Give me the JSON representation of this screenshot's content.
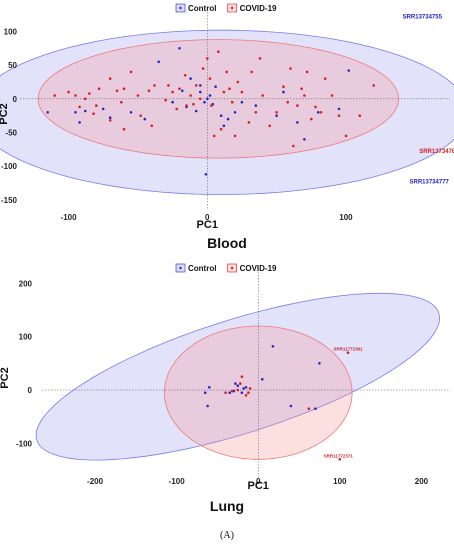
{
  "figure_label": "(A)",
  "chart_data": [
    {
      "type": "scatter",
      "title": "Blood",
      "xlabel": "PC1",
      "ylabel": "PC2",
      "xlim": [
        -135,
        175
      ],
      "ylim": [
        -165,
        120
      ],
      "xticks": [
        -100,
        0,
        100
      ],
      "yticks": [
        -150,
        -100,
        -50,
        0,
        50,
        100
      ],
      "grid": false,
      "legend_position": "top",
      "series": [
        {
          "name": "Control",
          "color": "#2828c8",
          "points": [
            [
              -115,
              -20
            ],
            [
              -95,
              -20
            ],
            [
              -88,
              -18
            ],
            [
              -75,
              -15
            ],
            [
              -92,
              -35
            ],
            [
              -70,
              -28
            ],
            [
              -55,
              -20
            ],
            [
              -45,
              -30
            ],
            [
              -25,
              -5
            ],
            [
              -15,
              -12
            ],
            [
              -8,
              -18
            ],
            [
              -5,
              10
            ],
            [
              -2,
              -5
            ],
            [
              0,
              0
            ],
            [
              2,
              5
            ],
            [
              4,
              -8
            ],
            [
              6,
              18
            ],
            [
              -12,
              30
            ],
            [
              -18,
              12
            ],
            [
              10,
              -25
            ],
            [
              12,
              -40
            ],
            [
              15,
              -30
            ],
            [
              20,
              -20
            ],
            [
              25,
              -5
            ],
            [
              35,
              -10
            ],
            [
              50,
              -25
            ],
            [
              55,
              10
            ],
            [
              65,
              -35
            ],
            [
              70,
              -60
            ],
            [
              80,
              -20
            ],
            [
              95,
              -15
            ],
            [
              102,
              42
            ],
            [
              -35,
              55
            ],
            [
              -20,
              75
            ],
            [
              -5,
              20
            ],
            [
              -1,
              -112
            ]
          ]
        },
        {
          "name": "COVID-19",
          "color": "#d42020",
          "points": [
            [
              -110,
              5
            ],
            [
              -100,
              10
            ],
            [
              -95,
              5
            ],
            [
              -85,
              8
            ],
            [
              -80,
              -10
            ],
            [
              -78,
              15
            ],
            [
              -70,
              30
            ],
            [
              -65,
              12
            ],
            [
              -62,
              -5
            ],
            [
              -60,
              15
            ],
            [
              -55,
              40
            ],
            [
              -50,
              5
            ],
            [
              -48,
              -25
            ],
            [
              -42,
              12
            ],
            [
              -40,
              -40
            ],
            [
              -38,
              20
            ],
            [
              -30,
              -2
            ],
            [
              -28,
              20
            ],
            [
              -25,
              10
            ],
            [
              -22,
              -15
            ],
            [
              -20,
              15
            ],
            [
              -16,
              35
            ],
            [
              -15,
              -10
            ],
            [
              -12,
              5
            ],
            [
              -10,
              -8
            ],
            [
              -8,
              20
            ],
            [
              -5,
              0
            ],
            [
              -3,
              45
            ],
            [
              0,
              60
            ],
            [
              2,
              30
            ],
            [
              3,
              -10
            ],
            [
              5,
              -55
            ],
            [
              8,
              70
            ],
            [
              10,
              -45
            ],
            [
              12,
              10
            ],
            [
              14,
              40
            ],
            [
              16,
              15
            ],
            [
              18,
              -5
            ],
            [
              20,
              -55
            ],
            [
              22,
              25
            ],
            [
              25,
              10
            ],
            [
              30,
              -35
            ],
            [
              32,
              40
            ],
            [
              35,
              -20
            ],
            [
              38,
              60
            ],
            [
              40,
              5
            ],
            [
              45,
              -40
            ],
            [
              50,
              -20
            ],
            [
              55,
              18
            ],
            [
              58,
              -5
            ],
            [
              60,
              45
            ],
            [
              62,
              -70
            ],
            [
              65,
              -10
            ],
            [
              68,
              15
            ],
            [
              70,
              5
            ],
            [
              72,
              40
            ],
            [
              75,
              -30
            ],
            [
              78,
              -12
            ],
            [
              82,
              -20
            ],
            [
              85,
              30
            ],
            [
              90,
              5
            ],
            [
              95,
              -25
            ],
            [
              100,
              -55
            ],
            [
              110,
              -25
            ],
            [
              120,
              20
            ],
            [
              -60,
              -45
            ],
            [
              -70,
              -32
            ],
            [
              -82,
              -22
            ],
            [
              -88,
              0
            ],
            [
              -92,
              -12
            ]
          ]
        },
        {
          "name": "Control 95% ellipse",
          "ellipse": {
            "cx": 10,
            "cy": -20,
            "rx": 178,
            "ry": 122,
            "angle_deg": 0
          },
          "color": "#7a7aee"
        },
        {
          "name": "COVID-19 95% ellipse",
          "ellipse": {
            "cx": 8,
            "cy": 0,
            "rx": 130,
            "ry": 88,
            "angle_deg": 0
          },
          "color": "#ee7a7a"
        }
      ],
      "annotations": [
        {
          "text": "SRR13734755",
          "x": 155,
          "y": 118,
          "color": "#2222cc"
        },
        {
          "text": "SRR13734781",
          "x": 167,
          "y": -82,
          "color": "#cc2222"
        },
        {
          "text": "SRR13734777",
          "x": 160,
          "y": -127,
          "color": "#2222cc"
        }
      ]
    },
    {
      "type": "scatter",
      "title": "Lung",
      "xlabel": "PC1",
      "ylabel": "PC2",
      "xlim": [
        -265,
        235
      ],
      "ylim": [
        -165,
        210
      ],
      "xticks": [
        -200,
        -100,
        0,
        100,
        200
      ],
      "yticks": [
        -100,
        0,
        100,
        200
      ],
      "grid": false,
      "legend_position": "top",
      "series": [
        {
          "name": "Control",
          "color": "#2828c8",
          "points": [
            [
              -65,
              -5
            ],
            [
              -60,
              5
            ],
            [
              -62,
              -30
            ],
            [
              -35,
              -5
            ],
            [
              -30,
              -2
            ],
            [
              -28,
              12
            ],
            [
              -25,
              8
            ],
            [
              -20,
              -5
            ],
            [
              -18,
              3
            ],
            [
              -15,
              5
            ],
            [
              5,
              20
            ],
            [
              18,
              82
            ],
            [
              40,
              -30
            ],
            [
              70,
              -35
            ],
            [
              75,
              50
            ]
          ]
        },
        {
          "name": "COVID-19",
          "color": "#d42020",
          "points": [
            [
              -40,
              -5
            ],
            [
              -32,
              -2
            ],
            [
              -25,
              0
            ],
            [
              -22,
              12
            ],
            [
              -20,
              25
            ],
            [
              -15,
              -10
            ],
            [
              -12,
              -5
            ],
            [
              -10,
              3
            ],
            [
              62,
              -35
            ],
            [
              110,
              70
            ],
            [
              100,
              -130
            ]
          ]
        },
        {
          "name": "Control 95% ellipse",
          "ellipse": {
            "cx": -25,
            "cy": 25,
            "rx": 275,
            "ry": 100,
            "angle_deg": 28
          },
          "color": "#7a7aee"
        },
        {
          "name": "COVID-19 95% ellipse",
          "ellipse": {
            "cx": 0,
            "cy": -5,
            "rx": 115,
            "ry": 125,
            "angle_deg": 0
          },
          "color": "#ee7a7a"
        }
      ],
      "annotations": [
        {
          "text": "SRR11772361",
          "x": 110,
          "y": 72
        },
        {
          "text": "SRR11772371",
          "x": 98,
          "y": -128
        }
      ]
    }
  ]
}
